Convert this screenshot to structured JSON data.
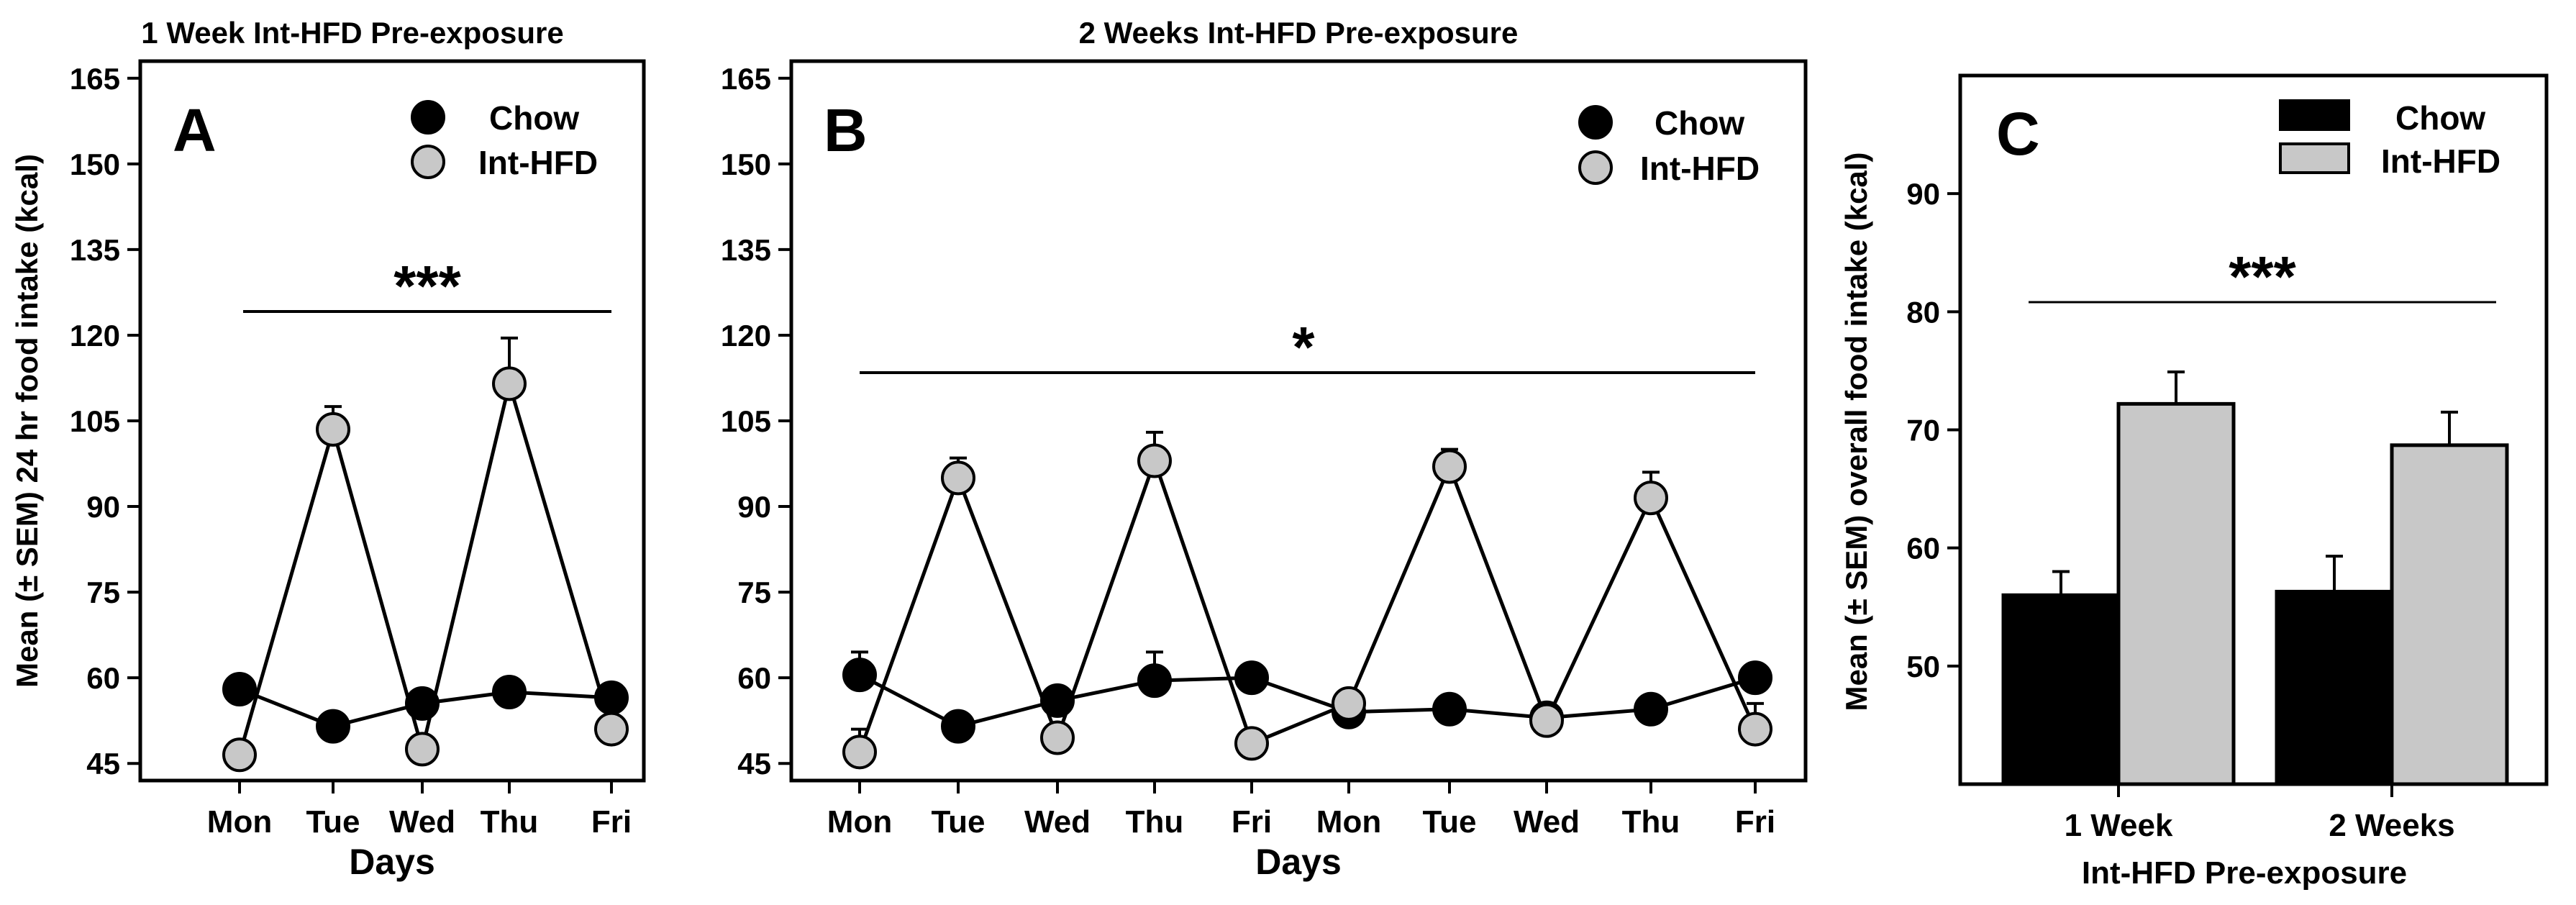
{
  "figure": {
    "ylabel_common": "Mean (± SEM) 24 hr food intake (kcal)"
  },
  "chart_data": [
    {
      "type": "line",
      "panel_letter": "A",
      "title": "1 Week Int-HFD Pre-exposure",
      "xlabel": "Days",
      "ylabel": "Mean (± SEM) 24 hr food intake (kcal)",
      "categories": [
        "Mon",
        "Tue",
        "Wed",
        "Thu",
        "Fri"
      ],
      "ylim": [
        42,
        168
      ],
      "yticks": [
        45,
        60,
        75,
        90,
        105,
        120,
        135,
        150,
        165
      ],
      "legend_position": "top-right",
      "significance": "***",
      "series": [
        {
          "name": "Chow",
          "color": "#000000",
          "values": [
            58,
            51.5,
            55.5,
            57.5,
            56.5
          ],
          "sem": [
            1.5,
            1.5,
            1.5,
            1.5,
            1.5
          ]
        },
        {
          "name": "Int-HFD",
          "color": "#c8c8c8",
          "values": [
            46.5,
            103.5,
            47.5,
            111.5,
            51
          ],
          "sem": [
            1.5,
            4,
            1.5,
            8,
            1.5
          ]
        }
      ]
    },
    {
      "type": "line",
      "panel_letter": "B",
      "title": "2 Weeks Int-HFD Pre-exposure",
      "xlabel": "Days",
      "categories": [
        "Mon",
        "Tue",
        "Wed",
        "Thu",
        "Fri",
        "Mon",
        "Tue",
        "Wed",
        "Thu",
        "Fri"
      ],
      "ylim": [
        42,
        168
      ],
      "yticks": [
        45,
        60,
        75,
        90,
        105,
        120,
        135,
        150,
        165
      ],
      "legend_position": "top-right",
      "significance": "*",
      "series": [
        {
          "name": "Chow",
          "color": "#000000",
          "values": [
            60.5,
            51.5,
            56,
            59.5,
            60,
            54,
            54.5,
            53,
            54.5,
            60
          ],
          "sem": [
            4,
            1.5,
            1.5,
            5,
            1.5,
            1.5,
            1.5,
            1.5,
            1.5,
            1.5
          ]
        },
        {
          "name": "Int-HFD",
          "color": "#c8c8c8",
          "values": [
            47,
            95,
            49.5,
            98,
            48.5,
            55.5,
            97,
            52.5,
            91.5,
            51
          ],
          "sem": [
            4,
            3.5,
            1.5,
            5,
            1.5,
            1.5,
            3,
            1.5,
            4.5,
            4.5
          ]
        }
      ]
    },
    {
      "type": "bar",
      "panel_letter": "C",
      "xlabel": "Int-HFD Pre-exposure",
      "ylabel": "Mean (± SEM) overall food intake (kcal)",
      "categories": [
        "1 Week",
        "2 Weeks"
      ],
      "ylim": [
        40,
        100
      ],
      "yticks": [
        50,
        60,
        70,
        80,
        90
      ],
      "legend_position": "top-right",
      "significance": "***",
      "series": [
        {
          "name": "Chow",
          "color": "#000000",
          "values": [
            56,
            56.3
          ],
          "sem": [
            2,
            3
          ]
        },
        {
          "name": "Int-HFD",
          "color": "#c8c8c8",
          "values": [
            72.2,
            68.7
          ],
          "sem": [
            2.7,
            2.8
          ]
        }
      ]
    }
  ]
}
